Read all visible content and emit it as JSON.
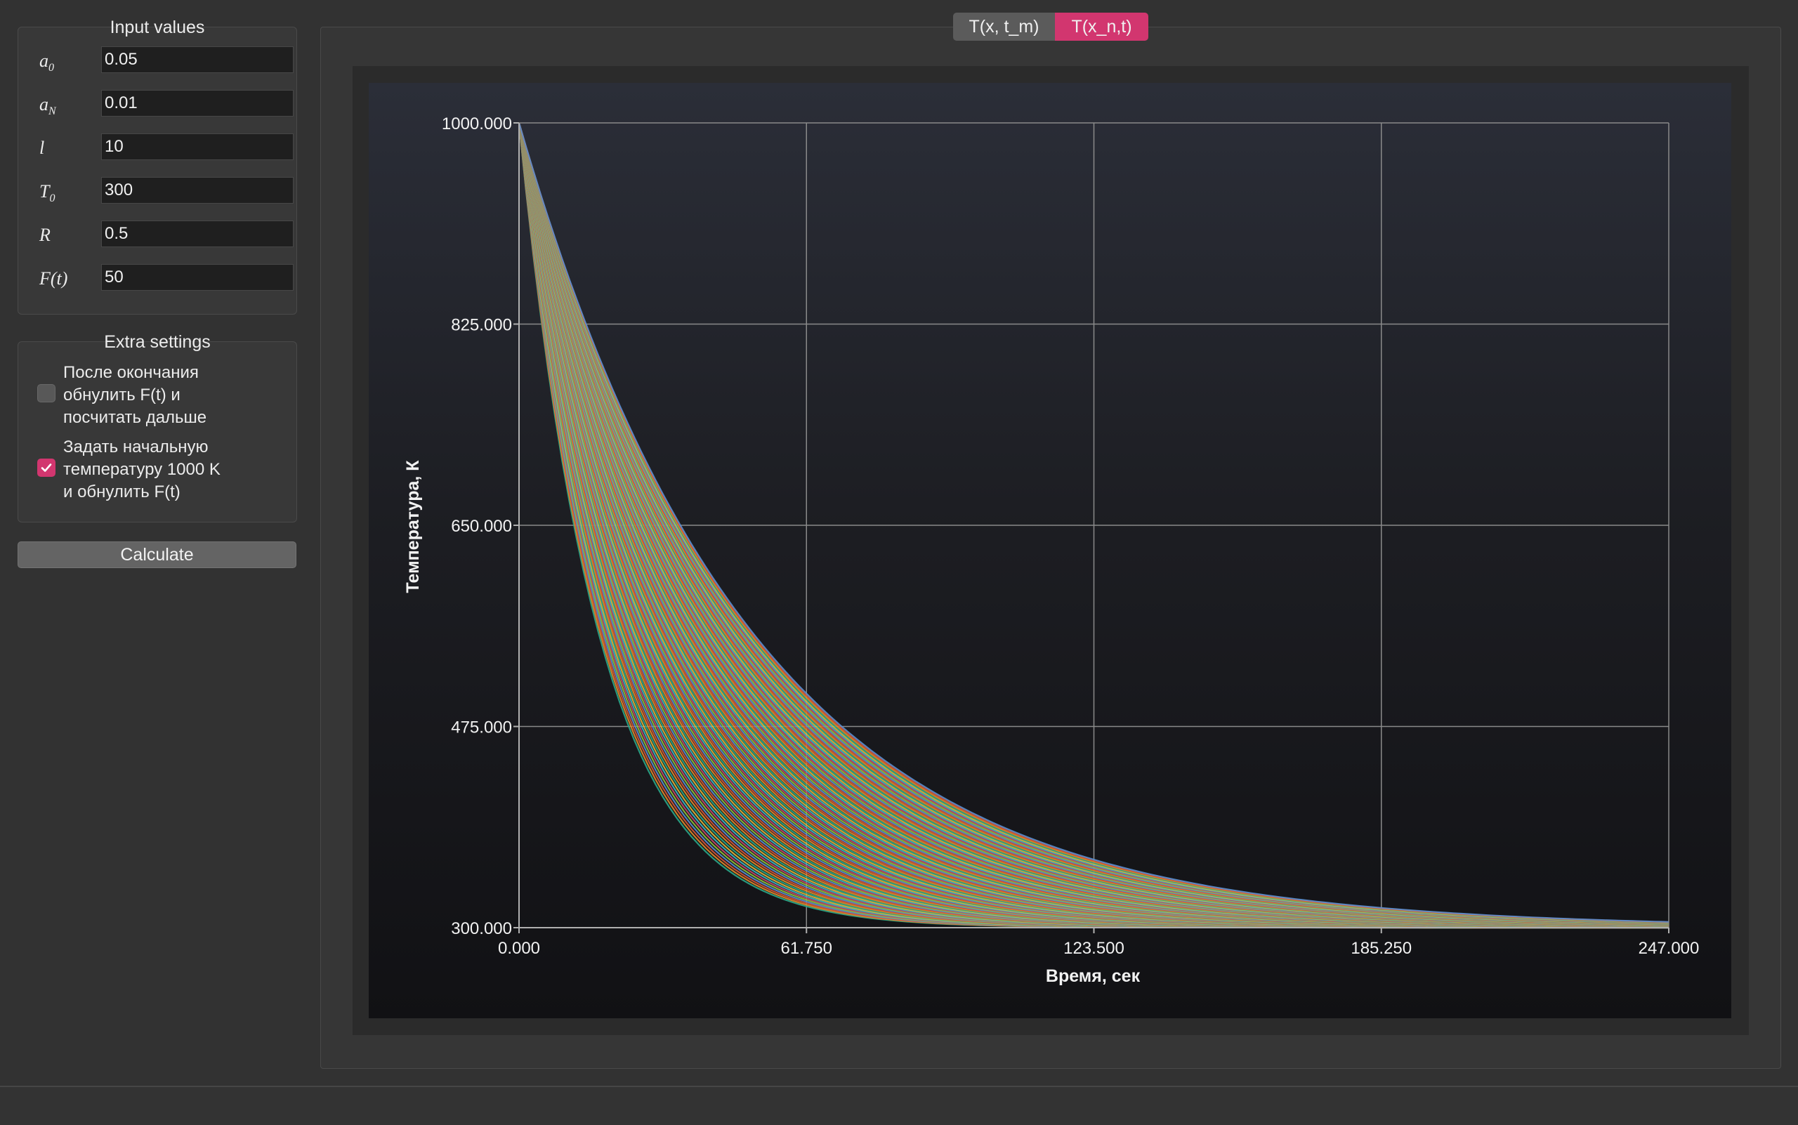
{
  "input_values": {
    "title": "Input values",
    "fields": [
      {
        "symbol": "a",
        "sub": "0",
        "value": "0.05"
      },
      {
        "symbol": "a",
        "sub": "N",
        "value": "0.01"
      },
      {
        "symbol": "l",
        "sub": "",
        "value": "10"
      },
      {
        "symbol": "T",
        "sub": "0",
        "value": "300"
      },
      {
        "symbol": "R",
        "sub": "",
        "value": "0.5"
      },
      {
        "symbol": "F(t)",
        "sub": "",
        "value": "50"
      }
    ]
  },
  "extra_settings": {
    "title": "Extra settings",
    "options": [
      {
        "lines": [
          "После окончания",
          "обнулить F(t) и",
          "посчитать дальше"
        ],
        "checked": false
      },
      {
        "lines": [
          "Задать начальную",
          "температуру 1000 K",
          "и обнулить F(t)"
        ],
        "checked": true
      }
    ]
  },
  "calculate_label": "Calculate",
  "tabs": [
    {
      "label": "T(x, t_m)",
      "active": false
    },
    {
      "label": "T(x_n,t)",
      "active": true
    }
  ],
  "colors": {
    "accent": "#d2366f"
  },
  "chart_data": {
    "type": "line",
    "title": "",
    "xlabel": "Время, сек",
    "ylabel": "Температура, К",
    "xlim": [
      0,
      247
    ],
    "ylim": [
      300,
      1000
    ],
    "x_ticks": [
      "0.000",
      "61.750",
      "123.500",
      "185.250",
      "247.000"
    ],
    "y_ticks": [
      "300.000",
      "475.000",
      "650.000",
      "825.000",
      "1000.000"
    ],
    "grid": true,
    "legend": "none",
    "series_count": 100,
    "series_model": "T(t) = 300 + 700*exp(-t/tau), tau from 17 to 50 sec",
    "tau_range": [
      17,
      50
    ],
    "series_colors": [
      "#2aa88a",
      "#e08a2a",
      "#d2553a",
      "#5a8fd0",
      "#8fbf3c",
      "#c24a6a",
      "#3cb6c4",
      "#e0b43a"
    ]
  }
}
